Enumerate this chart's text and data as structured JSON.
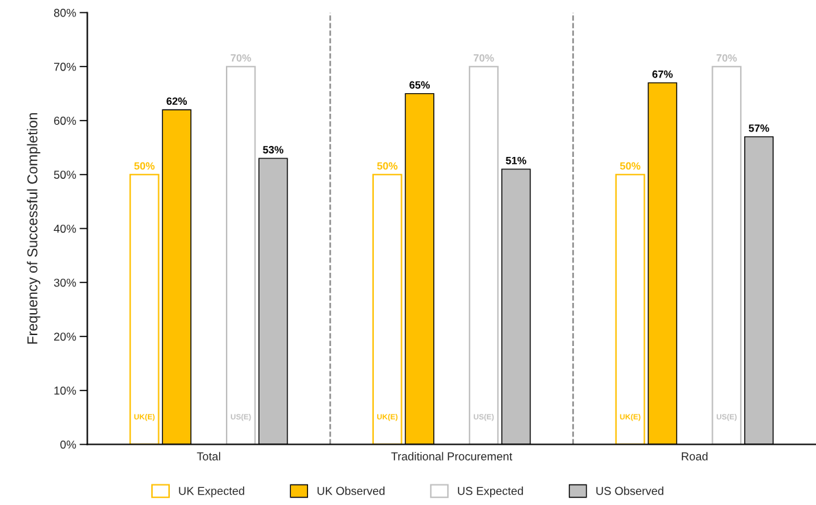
{
  "chart_data": {
    "type": "bar",
    "ylabel": "Frequency of Successful Completion",
    "categories": [
      "Total",
      "Traditional Procurement",
      "Road"
    ],
    "series": [
      {
        "name": "UK Expected",
        "color": "#ffc000",
        "values": [
          50,
          50,
          50
        ],
        "value_labels": [
          "50%",
          "50%",
          "50%"
        ]
      },
      {
        "name": "UK Observed",
        "color": "#ffc000",
        "values": [
          62,
          65,
          67
        ],
        "value_labels": [
          "62%",
          "65%",
          "67%"
        ]
      },
      {
        "name": "US Expected",
        "color": "#bfbfbf",
        "values": [
          70,
          70,
          70
        ],
        "value_labels": [
          "70%",
          "70%",
          "70%"
        ]
      },
      {
        "name": "US Observed",
        "color": "#bfbfbf",
        "values": [
          53,
          51,
          57
        ],
        "value_labels": [
          "53%",
          "51%",
          "57%"
        ]
      }
    ],
    "ylim": [
      0,
      80
    ],
    "yticks": [
      {
        "value": 0,
        "label": "0%"
      },
      {
        "value": 10,
        "label": "10%"
      },
      {
        "value": 20,
        "label": "20%"
      },
      {
        "value": 30,
        "label": "30%"
      },
      {
        "value": 40,
        "label": "40%"
      },
      {
        "value": 50,
        "label": "50%"
      },
      {
        "value": 60,
        "label": "60%"
      },
      {
        "value": 70,
        "label": "70%"
      },
      {
        "value": 80,
        "label": "80%"
      }
    ],
    "annotations": [
      "UK(E)",
      "US(E)",
      "UK(E)",
      "US(E)",
      "UK(E)",
      "US(E)"
    ],
    "grid": false,
    "legend": "bottom"
  }
}
